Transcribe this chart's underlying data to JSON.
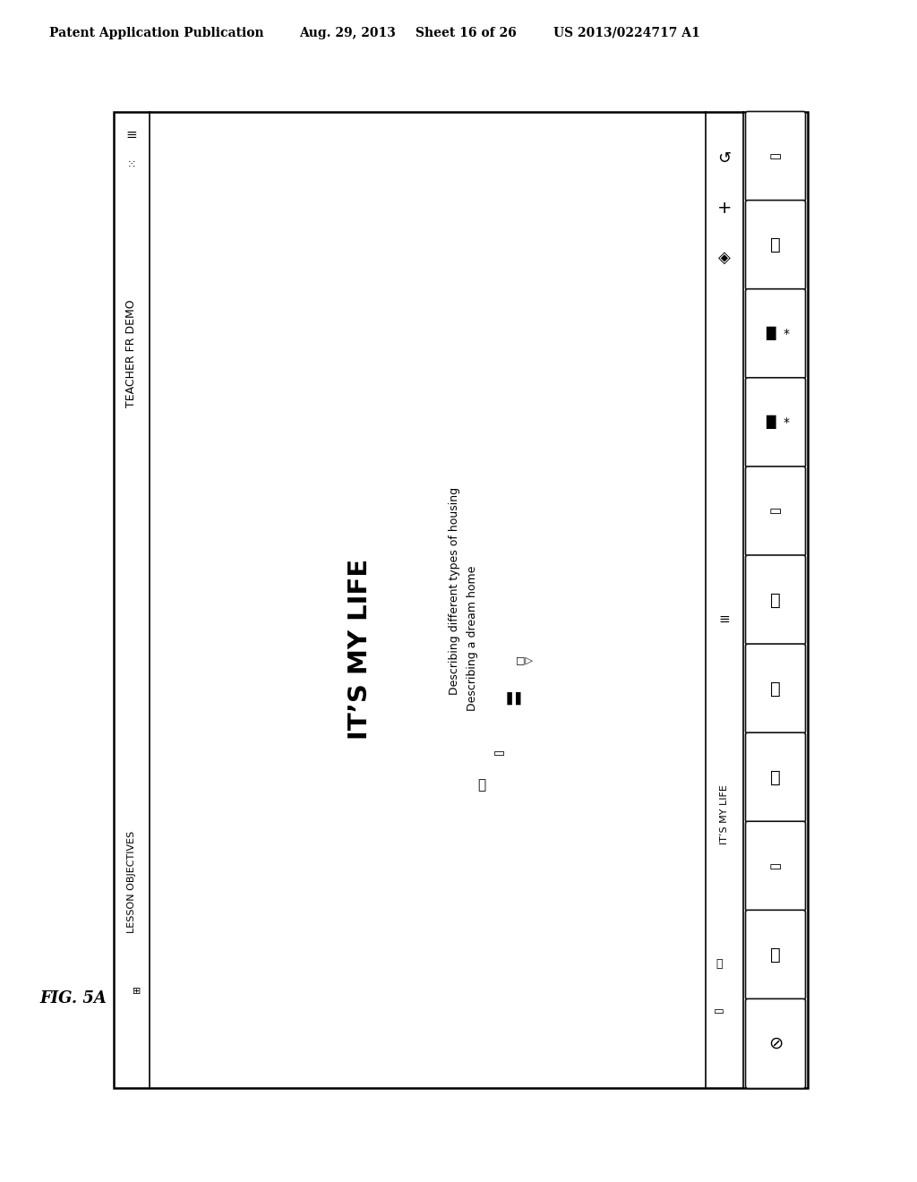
{
  "bg_color": "#ffffff",
  "header_text1": "Patent Application Publication",
  "header_text2": "Aug. 29, 2013",
  "header_text3": "Sheet 16 of 26",
  "header_text4": "US 2013/0224717 A1",
  "fig_label": "FIG. 5A",
  "main_title": "IT’S MY LIFE",
  "objectives_label": "LESSON OBJECTIVES",
  "teacher_label": "TEACHER FR DEMO",
  "lesson_label": "IT’S MY LIFE",
  "desc1": "Describing different types of housing",
  "desc2": "Describing a dream home"
}
